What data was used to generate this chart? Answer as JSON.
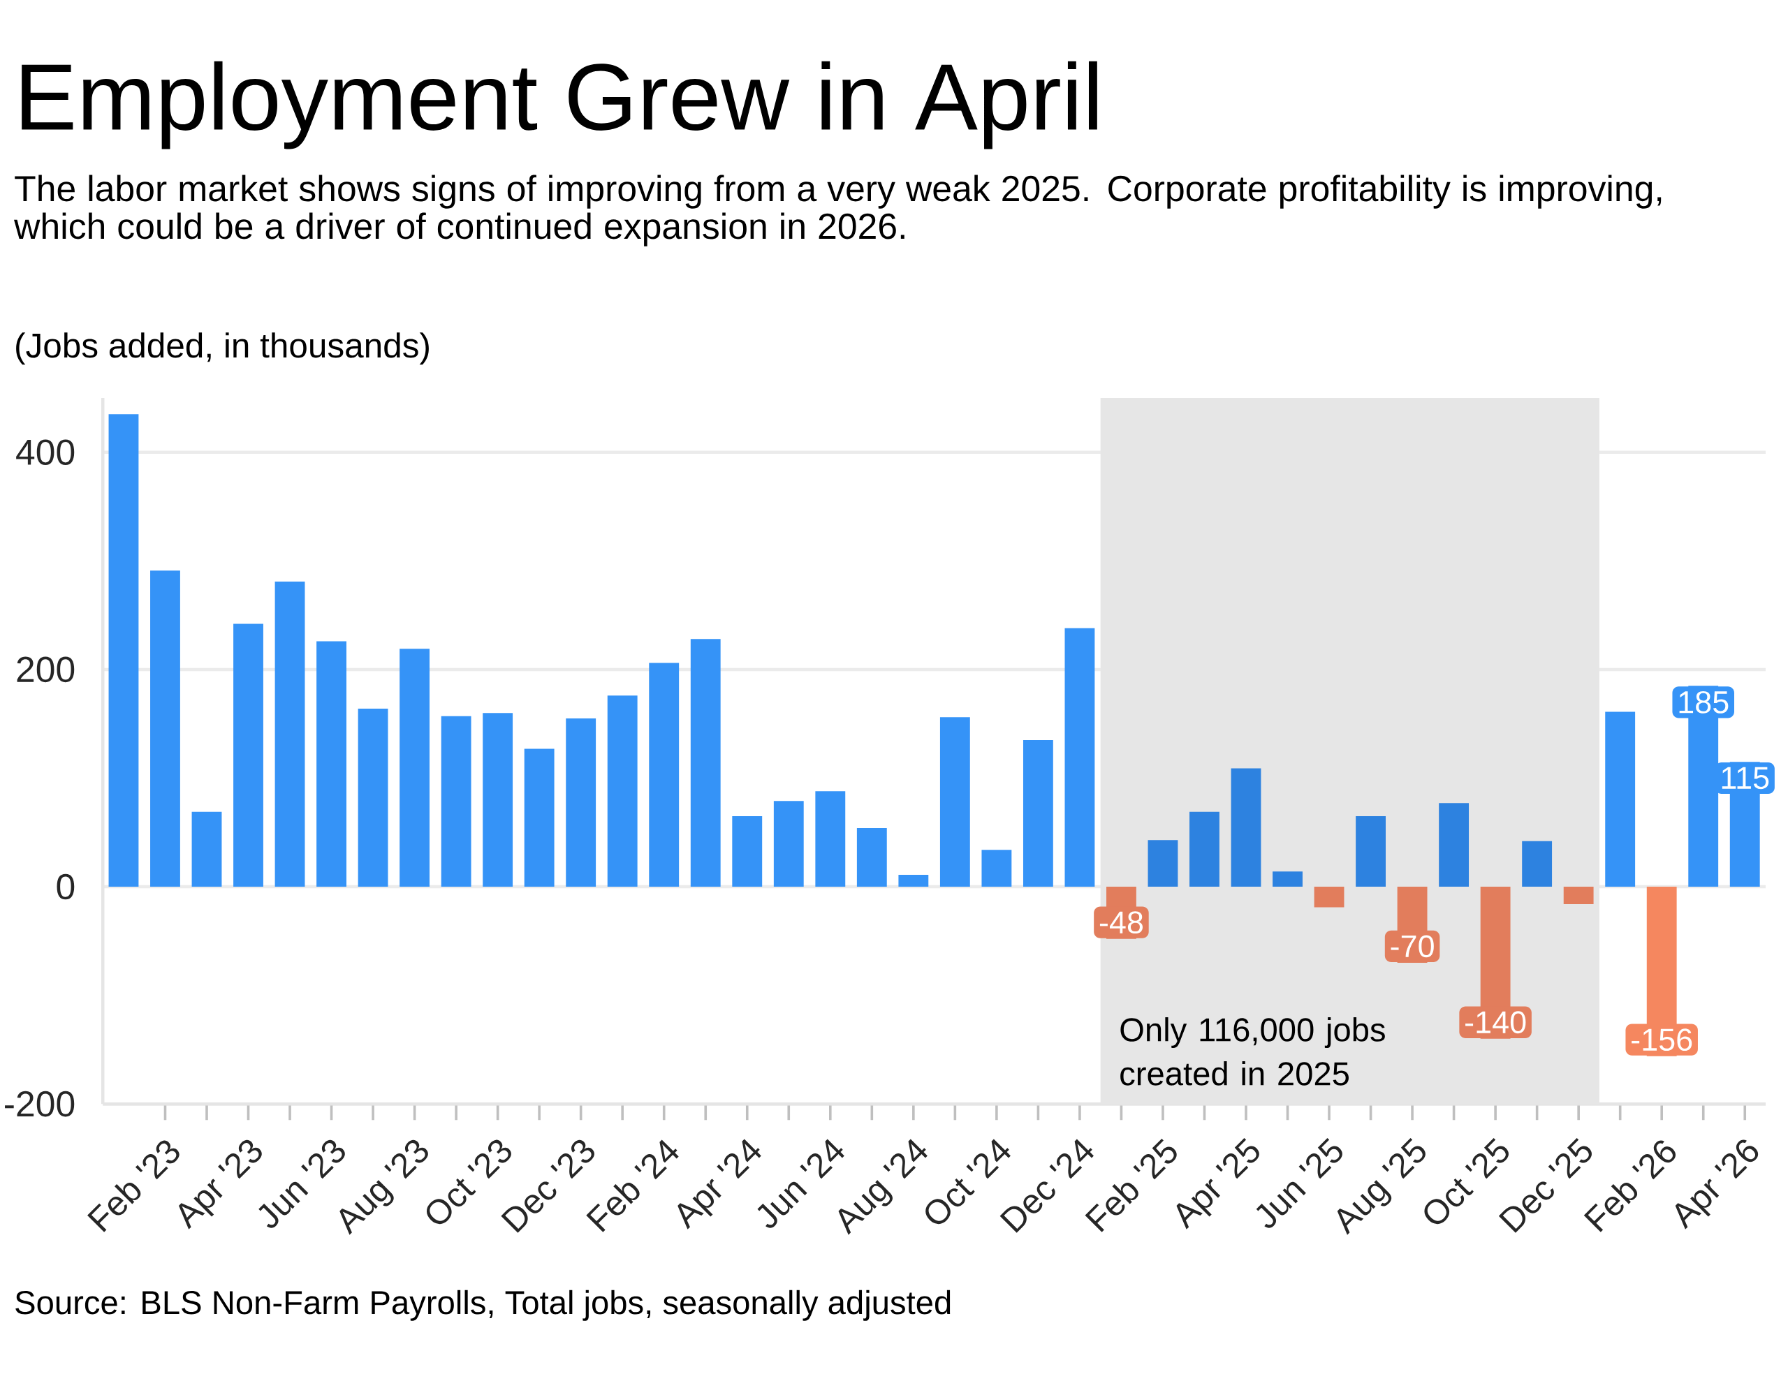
{
  "chart_data": {
    "type": "bar",
    "title": "Employment Grew in April",
    "subtitle": "The labor market shows signs of improving from a very weak 2025. Corporate profitability is improving, which could be a driver of continued expansion in 2026.",
    "ylabel": "(Jobs added, in thousands)",
    "x": [
      "2023-01",
      "2023-02",
      "2023-03",
      "2023-04",
      "2023-05",
      "2023-06",
      "2023-07",
      "2023-08",
      "2023-09",
      "2023-10",
      "2023-11",
      "2023-12",
      "2024-01",
      "2024-02",
      "2024-03",
      "2024-04",
      "2024-05",
      "2024-06",
      "2024-07",
      "2024-08",
      "2024-09",
      "2024-10",
      "2024-11",
      "2024-12",
      "2025-01",
      "2025-02",
      "2025-03",
      "2025-04",
      "2025-05",
      "2025-06",
      "2025-07",
      "2025-08",
      "2025-09",
      "2025-10",
      "2025-11",
      "2025-12",
      "2026-01",
      "2026-02",
      "2026-03",
      "2026-04"
    ],
    "values": [
      435,
      291,
      69,
      242,
      281,
      226,
      164,
      219,
      157,
      160,
      127,
      155,
      176,
      206,
      228,
      65,
      79,
      88,
      54,
      11,
      156,
      34,
      135,
      238,
      -48,
      43,
      69,
      109,
      14,
      -19,
      65,
      -70,
      77,
      -140,
      42,
      -16,
      161,
      -156,
      185,
      115
    ],
    "colors": [
      "#3593f7",
      "#3593f7",
      "#3593f7",
      "#3593f7",
      "#3593f7",
      "#3593f7",
      "#3593f7",
      "#3593f7",
      "#3593f7",
      "#3593f7",
      "#3593f7",
      "#3593f7",
      "#3593f7",
      "#3593f7",
      "#3593f7",
      "#3593f7",
      "#3593f7",
      "#3593f7",
      "#3593f7",
      "#3593f7",
      "#3593f7",
      "#3593f7",
      "#3593f7",
      "#3593f7",
      "#e27d5c",
      "#2d82e0",
      "#2d82e0",
      "#2d82e0",
      "#2d82e0",
      "#e27d5c",
      "#2d82e0",
      "#e27d5c",
      "#2d82e0",
      "#e27d5c",
      "#2d82e0",
      "#e27d5c",
      "#3593f7",
      "#f5875f",
      "#3593f7",
      "#3593f7"
    ],
    "value_labels": [
      null,
      null,
      null,
      null,
      null,
      null,
      null,
      null,
      null,
      null,
      null,
      null,
      null,
      null,
      null,
      null,
      null,
      null,
      null,
      null,
      null,
      null,
      null,
      null,
      "-48",
      null,
      null,
      null,
      null,
      null,
      null,
      "-70",
      null,
      "-140",
      null,
      null,
      null,
      "-156",
      "185",
      "115"
    ],
    "xlim": [
      "2022-12-16",
      "2026-04-16"
    ],
    "xticks": [
      {
        "value": "2023-02",
        "label": "Feb '23"
      },
      {
        "value": "2023-04",
        "label": "Apr '23"
      },
      {
        "value": "2023-06",
        "label": "Jun '23"
      },
      {
        "value": "2023-08",
        "label": "Aug '23"
      },
      {
        "value": "2023-10",
        "label": "Oct '23"
      },
      {
        "value": "2023-12",
        "label": "Dec '23"
      },
      {
        "value": "2024-02",
        "label": "Feb '24"
      },
      {
        "value": "2024-04",
        "label": "Apr '24"
      },
      {
        "value": "2024-06",
        "label": "Jun '24"
      },
      {
        "value": "2024-08",
        "label": "Aug '24"
      },
      {
        "value": "2024-10",
        "label": "Oct '24"
      },
      {
        "value": "2024-12",
        "label": "Dec '24"
      },
      {
        "value": "2025-02",
        "label": "Feb '25"
      },
      {
        "value": "2025-04",
        "label": "Apr '25"
      },
      {
        "value": "2025-06",
        "label": "Jun '25"
      },
      {
        "value": "2025-08",
        "label": "Aug '25"
      },
      {
        "value": "2025-10",
        "label": "Oct '25"
      },
      {
        "value": "2025-12",
        "label": "Dec '25"
      },
      {
        "value": "2026-02",
        "label": "Feb '26"
      },
      {
        "value": "2026-04",
        "label": "Apr '26"
      }
    ],
    "ylim": [
      -200,
      450
    ],
    "yticks": [
      -200,
      0,
      200,
      400
    ],
    "grid": "y",
    "bands": [
      {
        "axis": "x",
        "from": "2024-12-16",
        "to": "2025-12-16",
        "label": "Only 116,000 jobs created in 2025",
        "color": "#e6e6e6"
      }
    ],
    "annotations": [
      "Source: BLS Non-Farm Payrolls, Total jobs, seasonally adjusted"
    ]
  }
}
